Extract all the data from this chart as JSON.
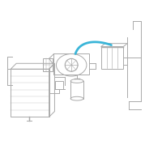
{
  "bg": "#ffffff",
  "lc": "#aaaaaa",
  "lw": 0.7,
  "hc": "#3ab5d8",
  "hw": 2.0,
  "xlim": [
    0,
    200
  ],
  "ylim": [
    0,
    200
  ]
}
